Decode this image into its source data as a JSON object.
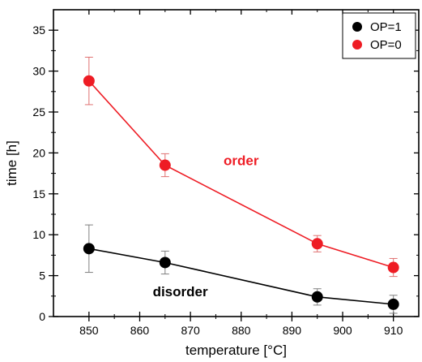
{
  "chart_data": {
    "type": "line",
    "x_axis": {
      "label": "temperature   [°C]",
      "range": [
        843,
        915
      ],
      "ticks": [
        850,
        860,
        870,
        880,
        890,
        900,
        910
      ],
      "minor_ticks": [
        855,
        865,
        875,
        885,
        895,
        905
      ]
    },
    "y_axis": {
      "label": "time   [h]",
      "range": [
        0,
        37.5
      ],
      "ticks": [
        0,
        5,
        10,
        15,
        20,
        25,
        30,
        35
      ],
      "minor_ticks": [
        2.5,
        7.5,
        12.5,
        17.5,
        22.5,
        27.5,
        32.5
      ]
    },
    "grid": false,
    "legend_placement": "top-right",
    "series": [
      {
        "name": "OP=1",
        "color": "#000000",
        "line_color": "#000000",
        "errorbar_color": "#808080",
        "marker": "circle",
        "points": [
          {
            "x": 850,
            "y": 8.3,
            "err": 2.9
          },
          {
            "x": 865,
            "y": 6.6,
            "err": 1.4
          },
          {
            "x": 895,
            "y": 2.4,
            "err": 1.0
          },
          {
            "x": 910,
            "y": 1.5,
            "err": 1.1
          }
        ]
      },
      {
        "name": "OP=0",
        "color": "#ee1c24",
        "line_color": "#ee1c24",
        "errorbar_color": "#e07070",
        "marker": "circle",
        "points": [
          {
            "x": 850,
            "y": 28.8,
            "err": 2.9
          },
          {
            "x": 865,
            "y": 18.5,
            "err": 1.4
          },
          {
            "x": 895,
            "y": 8.9,
            "err": 1.0
          },
          {
            "x": 910,
            "y": 6.0,
            "err": 1.1
          }
        ]
      }
    ],
    "annotations": [
      {
        "text": "order",
        "x": 880,
        "y": 18.5,
        "color": "#ee1c24"
      },
      {
        "text": "disorder",
        "x": 868,
        "y": 2.5,
        "color": "#000000"
      }
    ]
  }
}
